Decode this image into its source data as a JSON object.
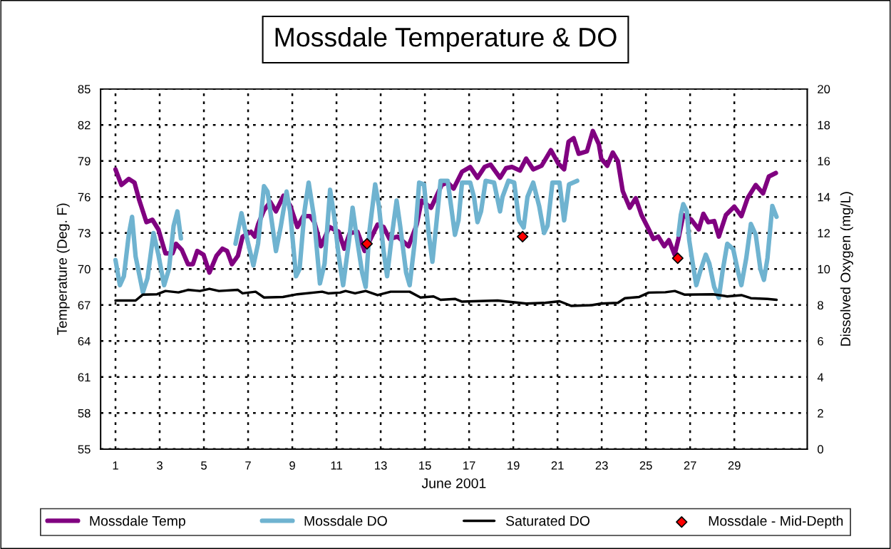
{
  "chart_data": {
    "type": "line",
    "title": "Mossdale Temperature & DO",
    "xlabel": "June 2001",
    "ylabel": "Temperature (Deg. F)",
    "y2label": "Dissolved Oxygen (mg/L)",
    "xlim": [
      0.33,
      32.3
    ],
    "xticks": [
      1,
      3,
      5,
      7,
      9,
      11,
      13,
      15,
      17,
      19,
      21,
      23,
      25,
      27,
      29
    ],
    "ylim": [
      55,
      85
    ],
    "yticks": [
      55,
      58,
      61,
      64,
      67,
      70,
      73,
      76,
      79,
      82,
      85
    ],
    "y2lim": [
      0,
      20
    ],
    "y2ticks": [
      0,
      2,
      4,
      6,
      8,
      10,
      12,
      14,
      16,
      18,
      20
    ],
    "grid": true,
    "legend": "bottom",
    "marker": "none",
    "line_style": "solid",
    "series": [
      {
        "name": "Mossdale Temp",
        "color": "#800080",
        "axis": "y",
        "x": [
          1,
          1.27,
          1.6,
          1.86,
          2.08,
          2.4,
          2.67,
          2.94,
          3.26,
          3.58,
          3.74,
          4.0,
          4.28,
          4.5,
          4.7,
          4.98,
          5.25,
          5.57,
          5.84,
          6.05,
          6.27,
          6.54,
          6.75,
          7.13,
          7.3,
          7.45,
          7.72,
          8.0,
          8.26,
          8.6,
          8.9,
          9.23,
          9.5,
          9.8,
          10.0,
          10.3,
          10.68,
          11.1,
          11.35,
          11.6,
          11.95,
          12.27,
          12.86,
          13.13,
          13.4,
          13.77,
          14.26,
          14.63,
          14.85,
          15.28,
          15.76,
          16.03,
          16.3,
          16.68,
          17.05,
          17.38,
          17.7,
          17.97,
          18.4,
          18.67,
          18.94,
          19.3,
          19.58,
          19.9,
          20.28,
          20.7,
          21.03,
          21.3,
          21.5,
          21.73,
          21.96,
          22.33,
          22.6,
          22.87,
          22.98,
          23.25,
          23.5,
          23.73,
          23.95,
          24.27,
          24.54,
          24.8,
          25.13,
          25.34,
          25.56,
          25.83,
          26.04,
          26.3,
          26.47,
          26.69,
          27.06,
          27.39,
          27.6,
          27.82,
          28.09,
          28.3,
          28.62,
          29.0,
          29.32,
          29.6,
          29.97,
          30.3,
          30.56,
          30.88
        ],
        "values": [
          78.3,
          77.0,
          77.5,
          77.2,
          75.7,
          73.9,
          74.1,
          73.3,
          71.3,
          71.3,
          72.1,
          71.6,
          70.4,
          70.4,
          71.5,
          71.2,
          69.7,
          71.1,
          71.7,
          71.5,
          70.4,
          71.1,
          72.7,
          73.1,
          72.7,
          73.7,
          74.9,
          75.6,
          74.8,
          76.1,
          75.3,
          73.5,
          74.4,
          74.4,
          73.9,
          71.9,
          73.5,
          73.1,
          71.7,
          73.0,
          73.1,
          71.5,
          73.7,
          73.5,
          72.5,
          72.7,
          71.9,
          73.7,
          75.7,
          75.1,
          77.0,
          77.2,
          76.7,
          78.1,
          78.5,
          77.6,
          78.5,
          78.7,
          77.6,
          78.4,
          78.5,
          78.2,
          79.2,
          78.3,
          78.6,
          79.9,
          78.8,
          78.3,
          80.6,
          80.9,
          79.6,
          79.8,
          81.5,
          80.4,
          79.2,
          78.6,
          79.7,
          79.0,
          76.5,
          75.1,
          75.9,
          74.5,
          73.3,
          72.5,
          72.7,
          71.9,
          72.4,
          71.2,
          72.5,
          74.5,
          74.1,
          73.3,
          74.6,
          73.9,
          74.0,
          72.7,
          74.5,
          75.2,
          74.4,
          75.9,
          77.0,
          76.3,
          77.7,
          78.0
        ]
      },
      {
        "name": "Mossdale DO",
        "color": "#6fb3d0",
        "axis": "y2",
        "x": [
          1,
          1.2,
          1.38,
          1.6,
          1.75,
          1.91,
          2.24,
          2.45,
          2.72,
          2.94,
          3.2,
          3.42,
          3.63,
          3.8,
          3.96,
          5.2,
          6.43,
          6.7,
          6.91,
          7.24,
          7.45,
          7.72,
          7.88,
          8.26,
          8.47,
          8.74,
          8.9,
          9.17,
          9.33,
          9.55,
          9.74,
          9.98,
          10.25,
          10.46,
          10.71,
          10.9,
          11.09,
          11.3,
          11.57,
          11.73,
          11.9,
          12.16,
          12.32,
          12.49,
          12.75,
          12.92,
          13.13,
          13.29,
          13.51,
          13.72,
          13.88,
          14.15,
          14.31,
          14.53,
          14.74,
          14.96,
          15.17,
          15.34,
          15.5,
          15.71,
          16.03,
          16.25,
          16.36,
          16.52,
          16.68,
          17.05,
          17.22,
          17.38,
          17.54,
          17.75,
          18.13,
          18.4,
          18.51,
          18.78,
          19.04,
          19.26,
          19.47,
          19.64,
          19.9,
          20.17,
          20.39,
          20.55,
          20.77,
          21.09,
          21.3,
          21.52,
          21.89,
          24.0,
          26.47,
          26.58,
          26.69,
          26.85,
          26.96,
          27.12,
          27.28,
          27.44,
          27.71,
          27.87,
          28.09,
          28.3,
          28.46,
          28.68,
          28.95,
          29.16,
          29.32,
          29.54,
          29.75,
          29.97,
          30.18,
          30.34,
          30.5,
          30.72,
          30.91
        ],
        "values": [
          10.5,
          9.1,
          9.6,
          11.9,
          12.9,
          10.7,
          8.7,
          9.5,
          12.0,
          10.8,
          9.1,
          10.0,
          12.4,
          13.2,
          11.7,
          null,
          11.4,
          13.1,
          11.9,
          10.2,
          11.4,
          14.6,
          14.3,
          11.0,
          12.3,
          14.3,
          13.2,
          9.6,
          10.0,
          13.2,
          14.8,
          12.9,
          9.2,
          10.3,
          14.4,
          12.9,
          10.8,
          9.1,
          11.6,
          13.4,
          11.9,
          9.8,
          9.0,
          12.1,
          14.7,
          13.5,
          11.0,
          9.6,
          11.9,
          13.8,
          12.4,
          9.8,
          9.1,
          11.4,
          14.8,
          14.7,
          12.0,
          10.4,
          12.3,
          14.9,
          14.9,
          12.9,
          11.9,
          12.7,
          14.8,
          14.8,
          14.0,
          12.6,
          13.2,
          14.9,
          14.8,
          13.2,
          14.0,
          14.9,
          14.8,
          12.7,
          12.3,
          14.0,
          14.8,
          13.5,
          12.0,
          12.4,
          14.8,
          14.8,
          12.7,
          14.7,
          14.9,
          null,
          11.9,
          13.0,
          13.6,
          13.2,
          11.6,
          10.3,
          9.1,
          9.8,
          10.8,
          10.3,
          9.0,
          8.4,
          9.8,
          11.4,
          11.1,
          9.9,
          9.1,
          10.6,
          12.5,
          11.9,
          10.0,
          9.4,
          10.6,
          13.5,
          12.9
        ]
      },
      {
        "name": "Saturated DO",
        "color": "#000000",
        "axis": "y2",
        "x": [
          1,
          1.91,
          2.24,
          2.88,
          3.26,
          3.85,
          4.28,
          4.82,
          5.25,
          5.68,
          6.54,
          6.75,
          7.34,
          7.72,
          8.58,
          9.23,
          10.35,
          10.62,
          11.16,
          11.41,
          11.84,
          12.32,
          12.86,
          13.45,
          14.31,
          14.8,
          15.39,
          15.71,
          16.36,
          16.68,
          18.29,
          19.58,
          20.44,
          21.09,
          21.63,
          22.55,
          22.98,
          23.73,
          24.05,
          24.7,
          25.13,
          25.88,
          26.31,
          26.74,
          28.03,
          28.68,
          29.32,
          29.75,
          30.5,
          30.91
        ],
        "values": [
          8.25,
          8.25,
          8.58,
          8.6,
          8.78,
          8.7,
          8.84,
          8.78,
          8.9,
          8.78,
          8.84,
          8.65,
          8.74,
          8.42,
          8.45,
          8.6,
          8.74,
          8.65,
          8.69,
          8.78,
          8.65,
          8.78,
          8.55,
          8.74,
          8.74,
          8.42,
          8.48,
          8.29,
          8.34,
          8.19,
          8.25,
          8.08,
          8.12,
          8.21,
          7.95,
          7.99,
          8.08,
          8.12,
          8.38,
          8.45,
          8.69,
          8.71,
          8.78,
          8.58,
          8.6,
          8.48,
          8.55,
          8.38,
          8.34,
          8.29
        ]
      },
      {
        "name": "Mossdale - Mid-Depth",
        "color": "#ff0000",
        "type": "scatter",
        "axis": "y2",
        "marker": "diamond",
        "x": [
          12.38,
          19.42,
          26.44
        ],
        "values": [
          11.4,
          11.8,
          10.6
        ]
      }
    ]
  }
}
